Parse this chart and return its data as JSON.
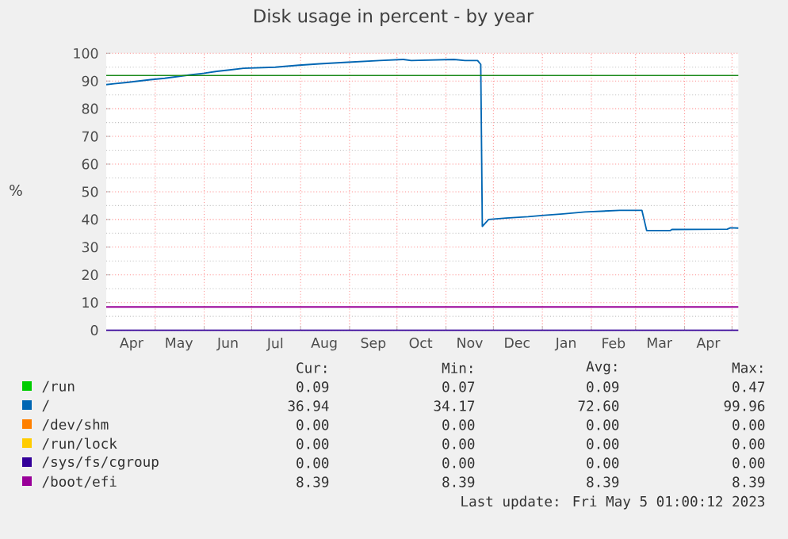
{
  "chart_data": {
    "type": "line",
    "title": "Disk usage in percent - by year",
    "ylabel": "%",
    "xlim": [
      "2022-03-31",
      "2023-05-05"
    ],
    "xticks": [
      {
        "value": "2022-05-01",
        "label": null
      },
      {
        "value": "2022-06-01",
        "label": null
      },
      {
        "value": "2022-07-01",
        "label": null
      },
      {
        "value": "2022-08-01",
        "label": null
      },
      {
        "value": "2022-09-01",
        "label": null
      },
      {
        "value": "2022-10-01",
        "label": null
      },
      {
        "value": "2022-11-01",
        "label": null
      },
      {
        "value": "2022-12-01",
        "label": null
      },
      {
        "value": "2023-01-01",
        "label": null
      },
      {
        "value": "2023-02-01",
        "label": null
      },
      {
        "value": "2023-03-01",
        "label": null
      },
      {
        "value": "2023-04-01",
        "label": null
      },
      {
        "value": "2023-05-01",
        "label": null
      },
      {
        "value": "2022-04-16",
        "label": "Apr"
      },
      {
        "value": "2022-05-16",
        "label": "May"
      },
      {
        "value": "2022-06-16",
        "label": "Jun"
      },
      {
        "value": "2022-07-16",
        "label": "Jul"
      },
      {
        "value": "2022-08-16",
        "label": "Aug"
      },
      {
        "value": "2022-09-16",
        "label": "Sep"
      },
      {
        "value": "2022-10-16",
        "label": "Oct"
      },
      {
        "value": "2022-11-16",
        "label": "Nov"
      },
      {
        "value": "2022-12-16",
        "label": "Dec"
      },
      {
        "value": "2023-01-16",
        "label": "Jan"
      },
      {
        "value": "2023-02-15",
        "label": "Feb"
      },
      {
        "value": "2023-03-16",
        "label": "Mar"
      },
      {
        "value": "2023-04-16",
        "label": "Apr"
      }
    ],
    "ylim": [
      0,
      100
    ],
    "yticks": [
      0,
      10,
      20,
      30,
      40,
      50,
      60,
      70,
      80,
      90,
      100
    ],
    "grid": true,
    "legend": "bottom",
    "line_style": "solid",
    "ref_lines": [
      {
        "axis": "y",
        "value": 92,
        "color": "#1a8a1a"
      }
    ],
    "series": [
      {
        "name": "/run",
        "color": "#00cc00"
      },
      {
        "name": "/",
        "color": "#0066b3",
        "x": [
          "2022-03-31",
          "2022-04-05",
          "2022-04-13",
          "2022-04-28",
          "2022-05-07",
          "2022-05-23",
          "2022-06-01",
          "2022-06-09",
          "2022-06-17",
          "2022-06-26",
          "2022-07-16",
          "2022-07-31",
          "2022-08-13",
          "2022-08-31",
          "2022-09-20",
          "2022-10-05",
          "2022-10-10",
          "2022-11-06",
          "2022-11-13",
          "2022-11-21",
          "2022-11-23",
          "2022-11-24",
          "2022-11-28",
          "2022-12-09",
          "2022-12-23",
          "2023-01-02",
          "2023-01-14",
          "2023-01-28",
          "2023-02-19",
          "2023-03-05",
          "2023-03-08",
          "2023-03-23",
          "2023-03-24",
          "2023-04-28",
          "2023-04-30",
          "2023-05-05"
        ],
        "values": [
          88.7,
          89.0,
          89.5,
          90.5,
          91.0,
          92.2,
          92.8,
          93.5,
          94.0,
          94.6,
          95.0,
          95.7,
          96.2,
          96.8,
          97.4,
          97.8,
          97.4,
          97.8,
          97.4,
          97.4,
          96.0,
          37.5,
          40.0,
          40.5,
          41.0,
          41.5,
          42.0,
          42.7,
          43.3,
          43.3,
          36.0,
          36.0,
          36.4,
          36.5,
          37.0,
          36.9
        ]
      },
      {
        "name": "/dev/shm",
        "color": "#ff8000"
      },
      {
        "name": "/run/lock",
        "color": "#ffcc00"
      },
      {
        "name": "/sys/fs/cgroup",
        "color": "#330099",
        "x": [
          "2022-03-31",
          "2023-05-05"
        ],
        "values": [
          0,
          0
        ]
      },
      {
        "name": "/boot/efi",
        "color": "#990099",
        "x": [
          "2022-03-31",
          "2023-05-05"
        ],
        "values": [
          8.4,
          8.4
        ]
      }
    ],
    "annotations": [
      "Cur:",
      "Min:",
      "Avg:",
      "Max:",
      "0.09",
      "0.07",
      "0.09",
      "0.47",
      "36.94",
      "34.17",
      "72.60",
      "99.96",
      "0.00",
      "0.00",
      "0.00",
      "0.00",
      "0.00",
      "0.00",
      "0.00",
      "0.00",
      "0.00",
      "0.00",
      "0.00",
      "0.00",
      "8.39",
      "8.39",
      "8.39",
      "8.39",
      "Last update: Fri May  5 01:00:12 2023"
    ]
  }
}
